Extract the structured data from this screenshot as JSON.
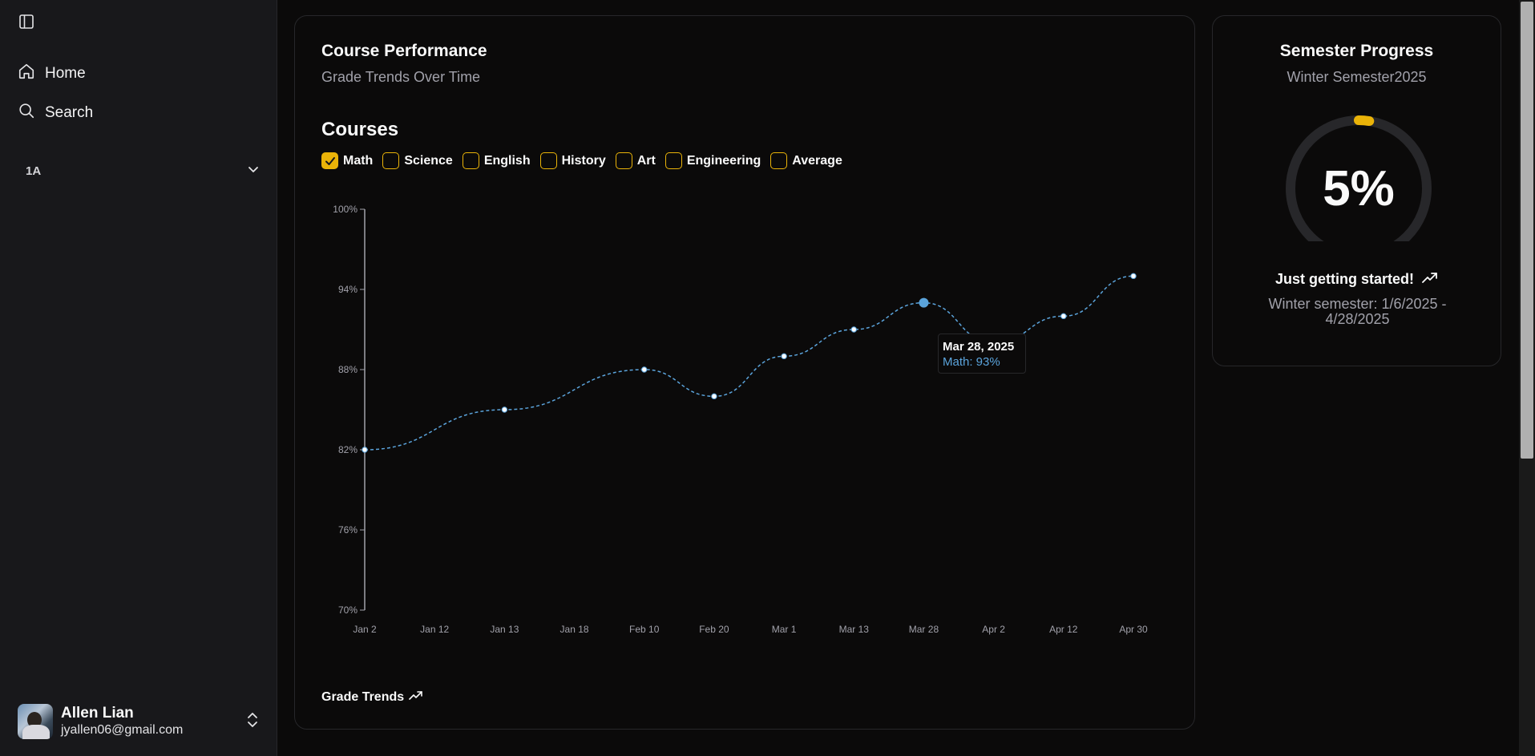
{
  "sidebar": {
    "nav": [
      {
        "label": "Home",
        "icon": "home-icon"
      },
      {
        "label": "Search",
        "icon": "search-icon"
      }
    ],
    "group": {
      "label": "1A"
    },
    "user": {
      "name": "Allen Lian",
      "email": "jyallen06@gmail.com"
    }
  },
  "performance": {
    "title": "Course Performance",
    "subtitle": "Grade Trends Over Time",
    "courses_title": "Courses",
    "filters": [
      {
        "label": "Math",
        "checked": true
      },
      {
        "label": "Science",
        "checked": false
      },
      {
        "label": "English",
        "checked": false
      },
      {
        "label": "History",
        "checked": false
      },
      {
        "label": "Art",
        "checked": false
      },
      {
        "label": "Engineering",
        "checked": false
      },
      {
        "label": "Average",
        "checked": false
      }
    ],
    "tooltip": {
      "date": "Mar 28, 2025",
      "value": "Math: 93%"
    },
    "footer": "Grade Trends"
  },
  "chart_data": {
    "type": "line",
    "categories": [
      "Jan 2",
      "Jan 12",
      "Jan 13",
      "Jan 18",
      "Feb 10",
      "Feb 20",
      "Mar 1",
      "Mar 13",
      "Mar 28",
      "Apr 2",
      "Apr 12",
      "Apr 30"
    ],
    "series": [
      {
        "name": "Math",
        "values": [
          82,
          null,
          85,
          null,
          88,
          86,
          89,
          91,
          93,
          90,
          92,
          95
        ],
        "color": "#5ba4dc"
      }
    ],
    "y_ticks": [
      "70%",
      "76%",
      "82%",
      "88%",
      "94%",
      "100%"
    ],
    "ylim": [
      70,
      100
    ],
    "highlight_index": 8
  },
  "progress": {
    "title": "Semester Progress",
    "subtitle": "Winter Semester2025",
    "percent_label": "5%",
    "percent": 5,
    "status": "Just getting started!",
    "range": "Winter semester: 1/6/2025 - 4/28/2025",
    "accent": "#eab308"
  }
}
